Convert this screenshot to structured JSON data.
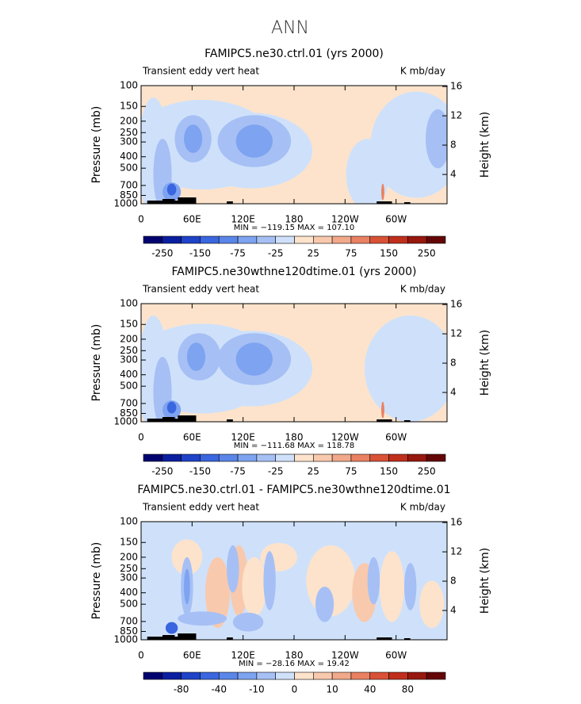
{
  "suptitle": "ANN",
  "chart_data": [
    {
      "type": "contour",
      "title": "FAMIPC5.ne30.ctrl.01 (yrs 2000)",
      "left_label": "Transient eddy vert heat",
      "right_label": "K mb/day",
      "ylabel": "Pressure (mb)",
      "y2label": "Height (km)",
      "stats": "MIN = −119.15   MAX = 107.10",
      "xlim": [
        0,
        360
      ],
      "xticks": [
        0,
        {
          "value": 60,
          "label": "60E"
        },
        {
          "value": 120,
          "label": "120E"
        },
        180,
        {
          "value": 240,
          "label": "120W"
        },
        {
          "value": 300,
          "label": "60W"
        }
      ],
      "ylim": [
        1000,
        100
      ],
      "log_y": true,
      "yticks": [
        100,
        150,
        200,
        250,
        300,
        400,
        500,
        700,
        850,
        1000
      ],
      "y2lim": [
        0,
        16.12
      ],
      "y2ticks": [
        4,
        8,
        12,
        16
      ],
      "colorbar": {
        "colors": [
          "#030370",
          "#0a1fa0",
          "#1e43c8",
          "#3a66df",
          "#5a86e9",
          "#7ea3f0",
          "#a6c0f5",
          "#cfe1fa",
          "#fde3cc",
          "#f8c9ad",
          "#f1a98a",
          "#e98162",
          "#d95236",
          "#c02f1c",
          "#97180e",
          "#650606"
        ],
        "labels": [
          -250,
          -150,
          -75,
          -25,
          25,
          75,
          150,
          250
        ]
      }
    },
    {
      "type": "contour",
      "title": "FAMIPC5.ne30wthne120dtime.01 (yrs 2000)",
      "left_label": "Transient eddy vert heat",
      "right_label": "K mb/day",
      "ylabel": "Pressure (mb)",
      "y2label": "Height (km)",
      "stats": "MIN = −111.68   MAX = 118.78",
      "xlim": [
        0,
        360
      ],
      "xticks": [
        0,
        {
          "value": 60,
          "label": "60E"
        },
        {
          "value": 120,
          "label": "120E"
        },
        180,
        {
          "value": 240,
          "label": "120W"
        },
        {
          "value": 300,
          "label": "60W"
        }
      ],
      "ylim": [
        1000,
        100
      ],
      "log_y": true,
      "yticks": [
        100,
        150,
        200,
        250,
        300,
        400,
        500,
        700,
        850,
        1000
      ],
      "y2lim": [
        0,
        16.12
      ],
      "y2ticks": [
        4,
        8,
        12,
        16
      ],
      "colorbar": {
        "colors": [
          "#030370",
          "#0a1fa0",
          "#1e43c8",
          "#3a66df",
          "#5a86e9",
          "#7ea3f0",
          "#a6c0f5",
          "#cfe1fa",
          "#fde3cc",
          "#f8c9ad",
          "#f1a98a",
          "#e98162",
          "#d95236",
          "#c02f1c",
          "#97180e",
          "#650606"
        ],
        "labels": [
          -250,
          -150,
          -75,
          -25,
          25,
          75,
          150,
          250
        ]
      }
    },
    {
      "type": "contour",
      "title": "FAMIPC5.ne30.ctrl.01 - FAMIPC5.ne30wthne120dtime.01",
      "left_label": "Transient eddy vert heat",
      "right_label": "K mb/day",
      "ylabel": "Pressure (mb)",
      "y2label": "Height (km)",
      "stats": "MIN = −28.16   MAX = 19.42",
      "xlim": [
        0,
        360
      ],
      "xticks": [
        0,
        {
          "value": 60,
          "label": "60E"
        },
        {
          "value": 120,
          "label": "120E"
        },
        180,
        {
          "value": 240,
          "label": "120W"
        },
        {
          "value": 300,
          "label": "60W"
        }
      ],
      "ylim": [
        1000,
        100
      ],
      "log_y": true,
      "yticks": [
        100,
        150,
        200,
        250,
        300,
        400,
        500,
        700,
        850,
        1000
      ],
      "y2lim": [
        0,
        16.12
      ],
      "y2ticks": [
        4,
        8,
        12,
        16
      ],
      "colorbar": {
        "colors": [
          "#030370",
          "#0a1fa0",
          "#1e43c8",
          "#3a66df",
          "#5a86e9",
          "#7ea3f0",
          "#a6c0f5",
          "#cfe1fa",
          "#fde3cc",
          "#f8c9ad",
          "#f1a98a",
          "#e98162",
          "#d95236",
          "#c02f1c",
          "#97180e",
          "#650606"
        ],
        "labels": [
          -80,
          -40,
          -10,
          0,
          10,
          40,
          80
        ]
      }
    }
  ]
}
